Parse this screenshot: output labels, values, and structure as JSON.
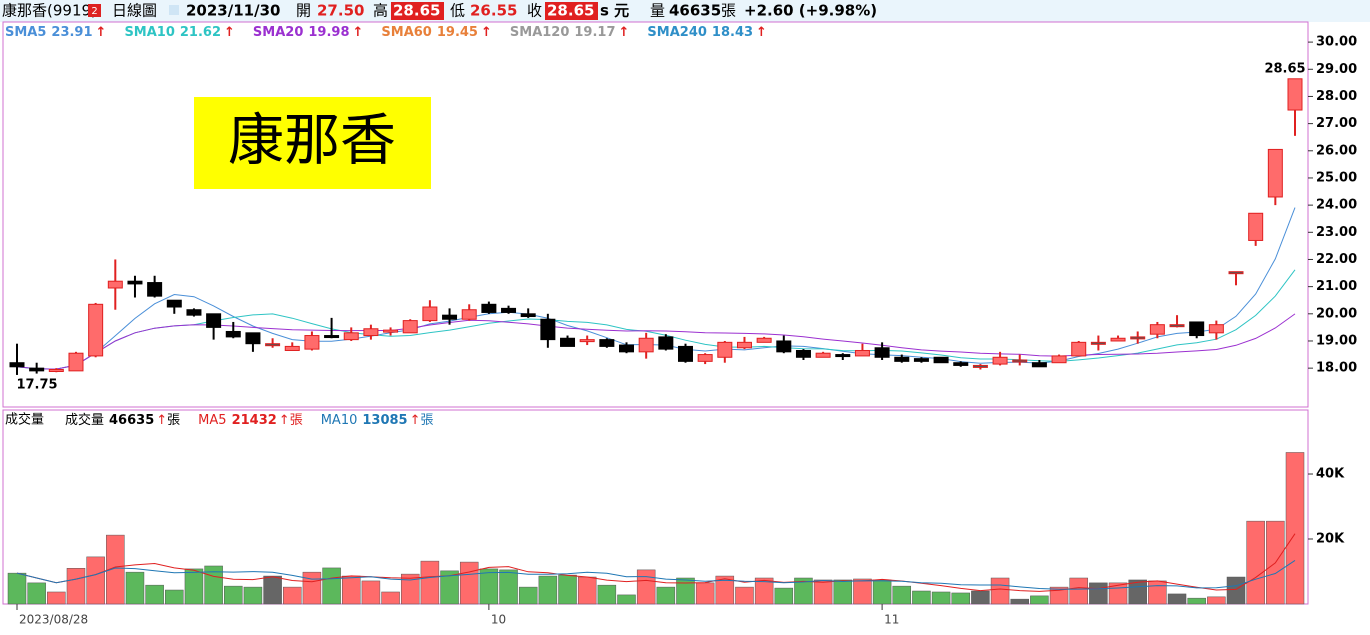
{
  "header": {
    "name": "康那香(9919)",
    "badge": "2",
    "view": "日線圖",
    "date": "2023/11/30",
    "open_label": "開",
    "open": "27.50",
    "high_label": "高",
    "high": "28.65",
    "low_label": "低",
    "low": "26.55",
    "close_label": "收",
    "close": "28.65",
    "unit": "s 元",
    "volume_label": "量",
    "volume": "46635",
    "volume_unit": "張",
    "change": "+2.60 (+9.98%)"
  },
  "arrow": "↑",
  "stamp": "康那香",
  "chart_data": [
    {
      "type": "candlestick",
      "categories": [
        "2023/08/28",
        null,
        null,
        null,
        null,
        null,
        null,
        null,
        null,
        null,
        null,
        null,
        null,
        null,
        null,
        null,
        null,
        null,
        null,
        null,
        null,
        null,
        null,
        null,
        "10",
        null,
        null,
        null,
        null,
        null,
        null,
        null,
        null,
        null,
        null,
        null,
        null,
        null,
        null,
        null,
        null,
        null,
        null,
        null,
        "11",
        null,
        null,
        null,
        null,
        null,
        null,
        null,
        null,
        null,
        null,
        null,
        null,
        null,
        null,
        null,
        null,
        null,
        null,
        null,
        null,
        null
      ],
      "open": [
        18.2,
        18.0,
        17.9,
        17.9,
        18.45,
        20.95,
        21.2,
        21.15,
        20.5,
        20.15,
        20.0,
        19.35,
        19.3,
        18.9,
        18.65,
        18.7,
        19.2,
        19.05,
        19.2,
        19.35,
        19.3,
        19.75,
        19.95,
        19.8,
        20.35,
        20.2,
        20.0,
        19.8,
        19.1,
        19.0,
        19.05,
        18.85,
        18.6,
        19.15,
        18.8,
        18.25,
        18.4,
        18.75,
        18.95,
        19.0,
        18.65,
        18.4,
        18.5,
        18.45,
        18.75,
        18.4,
        18.35,
        18.4,
        18.2,
        18.1,
        18.15,
        18.3,
        18.2,
        18.2,
        18.45,
        18.95,
        19.0,
        19.15,
        19.25,
        19.6,
        19.7,
        19.3,
        21.55,
        22.7,
        24.3,
        27.5
      ],
      "high": [
        18.9,
        18.2,
        18.0,
        18.6,
        20.4,
        22.0,
        21.4,
        21.4,
        20.5,
        20.2,
        20.0,
        19.7,
        19.3,
        19.1,
        18.95,
        19.35,
        19.85,
        19.5,
        19.6,
        19.5,
        19.8,
        20.5,
        20.2,
        20.35,
        20.45,
        20.3,
        20.2,
        20.0,
        19.2,
        19.2,
        19.1,
        18.95,
        19.3,
        19.25,
        18.9,
        18.55,
        19.0,
        19.15,
        19.15,
        19.2,
        18.7,
        18.6,
        18.55,
        18.9,
        18.95,
        18.5,
        18.4,
        18.4,
        18.25,
        18.15,
        18.6,
        18.5,
        18.3,
        18.5,
        19.0,
        19.2,
        19.2,
        19.35,
        19.7,
        19.95,
        19.7,
        19.75,
        21.55,
        23.7,
        26.05,
        28.65
      ],
      "low": [
        17.75,
        17.8,
        17.85,
        17.9,
        18.4,
        20.15,
        20.6,
        20.6,
        20.0,
        19.9,
        19.05,
        19.1,
        18.6,
        18.75,
        18.65,
        18.65,
        19.1,
        19.0,
        19.05,
        19.2,
        19.3,
        19.7,
        19.6,
        19.75,
        20.0,
        20.0,
        19.85,
        18.75,
        18.8,
        18.85,
        18.75,
        18.55,
        18.35,
        18.65,
        18.2,
        18.15,
        18.2,
        18.7,
        18.95,
        18.55,
        18.3,
        18.4,
        18.3,
        18.45,
        18.3,
        18.2,
        18.2,
        18.2,
        18.05,
        17.95,
        18.1,
        18.1,
        18.05,
        18.2,
        18.45,
        18.65,
        19.0,
        18.9,
        19.1,
        19.5,
        19.1,
        19.05,
        21.05,
        22.5,
        24.0,
        26.55
      ],
      "close": [
        18.05,
        17.9,
        17.95,
        18.55,
        20.35,
        21.2,
        21.1,
        20.65,
        20.25,
        19.95,
        19.5,
        19.15,
        18.9,
        18.9,
        18.8,
        19.2,
        19.15,
        19.3,
        19.45,
        19.4,
        19.75,
        20.25,
        19.8,
        20.15,
        20.05,
        20.05,
        19.9,
        19.05,
        18.8,
        19.05,
        18.8,
        18.6,
        19.1,
        18.7,
        18.25,
        18.5,
        18.95,
        18.95,
        19.1,
        18.6,
        18.4,
        18.55,
        18.45,
        18.65,
        18.4,
        18.25,
        18.25,
        18.2,
        18.1,
        18.1,
        18.4,
        18.3,
        18.05,
        18.45,
        18.95,
        18.95,
        19.1,
        19.15,
        19.6,
        19.6,
        19.2,
        19.6,
        21.55,
        23.7,
        26.05,
        28.65
      ],
      "up_color": "#ff6b6b",
      "down_color": "#000000",
      "flat_color": "#555555",
      "ylim": [
        16.57,
        30.74
      ],
      "yticks": [
        {
          "value": 18,
          "label": "18.00"
        },
        {
          "value": 19,
          "label": "19.00"
        },
        {
          "value": 20,
          "label": "20.00"
        },
        {
          "value": 21,
          "label": "21.00"
        },
        {
          "value": 22,
          "label": "22.00"
        },
        {
          "value": 23,
          "label": "23.00"
        },
        {
          "value": 24,
          "label": "24.00"
        },
        {
          "value": 25,
          "label": "25.00"
        },
        {
          "value": 26,
          "label": "26.00"
        },
        {
          "value": 27,
          "label": "27.00"
        },
        {
          "value": 28,
          "label": "28.00"
        },
        {
          "value": 29,
          "label": "29.00"
        },
        {
          "value": 30,
          "label": "30.00"
        }
      ],
      "legend": [
        {
          "name": "SMA5",
          "value": "23.91",
          "color": "#4a8fd8"
        },
        {
          "name": "SMA10",
          "value": "21.62",
          "color": "#2ec4c4"
        },
        {
          "name": "SMA20",
          "value": "19.98",
          "color": "#9b30d0"
        },
        {
          "name": "SMA60",
          "value": "19.45",
          "color": "#e8803a"
        },
        {
          "name": "SMA120",
          "value": "19.17",
          "color": "#999999"
        },
        {
          "name": "SMA240",
          "value": "18.43",
          "color": "#2f8fc8"
        }
      ],
      "annotations": [
        {
          "text": "17.75",
          "index": 0
        },
        {
          "text": "28.65",
          "index": 65
        }
      ]
    },
    {
      "type": "bar",
      "title": "成交量",
      "values": [
        9500,
        6500,
        3700,
        11000,
        14500,
        21200,
        9800,
        5800,
        4300,
        10800,
        11700,
        5500,
        5200,
        8600,
        5200,
        9800,
        11100,
        8600,
        7100,
        3700,
        9200,
        13200,
        10200,
        12900,
        10800,
        10500,
        5200,
        8600,
        8900,
        8300,
        5800,
        2800,
        10500,
        5200,
        8000,
        6500,
        8600,
        5200,
        8000,
        4900,
        8000,
        7400,
        7400,
        7700,
        7400,
        5500,
        4000,
        3700,
        3400,
        4000,
        8000,
        1500,
        2500,
        5200,
        8000,
        6500,
        6500,
        7400,
        7100,
        3100,
        1800,
        2200,
        8300,
        25500,
        25500,
        46635
      ],
      "up_color": "#ff6b6b",
      "down_color": "#5cb85c",
      "flat_color": "#666666",
      "ylim": [
        0,
        59700
      ],
      "yticks": [
        {
          "value": 20000,
          "label": "20K"
        },
        {
          "value": 40000,
          "label": "40K"
        }
      ],
      "unit": "張",
      "legend": [
        {
          "name": "成交量",
          "value": "46635",
          "color": "#000000"
        },
        {
          "name": "MA5",
          "value": "21432",
          "color": "#e02020"
        },
        {
          "name": "MA10",
          "value": "13085",
          "color": "#1f77b4"
        }
      ]
    }
  ]
}
